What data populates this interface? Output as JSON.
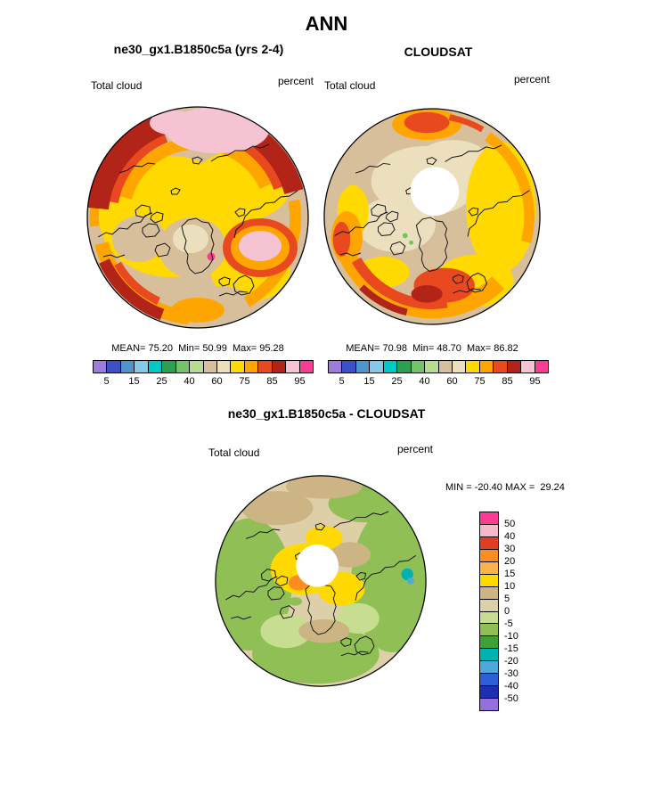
{
  "page": {
    "title": "ANN"
  },
  "panels": {
    "model": {
      "title": "ne30_gx1.B1850c5a (yrs 2-4)",
      "var_label": "Total cloud",
      "units": "percent",
      "stats": "MEAN= 75.20  Min= 50.99  Max= 95.28"
    },
    "obs": {
      "title": "CLOUDSAT",
      "var_label": "Total cloud",
      "units": "percent",
      "stats": "MEAN= 70.98  Min= 48.70  Max= 86.82"
    },
    "diff": {
      "title": "ne30_gx1.B1850c5a - CLOUDSAT",
      "var_label": "Total cloud",
      "units": "percent",
      "minmax": "MIN = -20.40 MAX =  29.24"
    }
  },
  "chart_data": [
    {
      "type": "heatmap",
      "subtype": "filled-contour polar map",
      "projection": "north polar stereographic",
      "season": "ANN",
      "title": "ne30_gx1.B1850c5a (yrs 2-4)",
      "variable": "Total cloud",
      "units": "percent",
      "stats": {
        "mean": 75.2,
        "min": 50.99,
        "max": 95.28
      },
      "contour_levels": [
        5,
        10,
        15,
        20,
        25,
        30,
        40,
        50,
        60,
        70,
        75,
        80,
        85,
        90,
        95
      ],
      "tick_labels": [
        "5",
        "15",
        "25",
        "40",
        "60",
        "75",
        "85",
        "95"
      ],
      "palette": [
        "#9e7bde",
        "#3c50c8",
        "#4f94cd",
        "#85c8ea",
        "#00c8c8",
        "#2e9e50",
        "#74c465",
        "#b8dc8c",
        "#d8bf9b",
        "#ecdfbd",
        "#ffd900",
        "#ffa500",
        "#e8491f",
        "#b22318",
        "#f6c3d3",
        "#fb3c94"
      ],
      "legend_position": "bottom",
      "pattern_notes": "Dark-red/red band (85-95%) around top rim with pale-pink >90% patches near top; broad yellow-orange (70-85%) over oceans; tan (50-70%) over Greenland and land; small pink/magenta maximum east of Greenland."
    },
    {
      "type": "heatmap",
      "subtype": "filled-contour polar map",
      "projection": "north polar stereographic",
      "season": "ANN",
      "title": "CLOUDSAT",
      "variable": "Total cloud",
      "units": "percent",
      "stats": {
        "mean": 70.98,
        "min": 48.7,
        "max": 86.82
      },
      "contour_levels": [
        5,
        10,
        15,
        20,
        25,
        30,
        40,
        50,
        60,
        70,
        75,
        80,
        85,
        90,
        95
      ],
      "tick_labels": [
        "5",
        "15",
        "25",
        "40",
        "60",
        "75",
        "85",
        "95"
      ],
      "palette": [
        "#9e7bde",
        "#3c50c8",
        "#4f94cd",
        "#85c8ea",
        "#00c8c8",
        "#2e9e50",
        "#74c465",
        "#b8dc8c",
        "#d8bf9b",
        "#ecdfbd",
        "#ffd900",
        "#ffa500",
        "#e8491f",
        "#b22318",
        "#f6c3d3",
        "#fb3c94"
      ],
      "legend_position": "bottom",
      "no_data_hole_at_pole": true,
      "pattern_notes": "White no-data circle at pole; tan/cream (50-70%) central Arctic; orange-red (75-90%) ring along lower and right rim; yellow band on the Pacific side."
    },
    {
      "type": "heatmap",
      "subtype": "filled-contour polar difference map",
      "projection": "north polar stereographic",
      "season": "ANN",
      "title": "ne30_gx1.B1850c5a - CLOUDSAT",
      "variable": "Total cloud",
      "units": "percent",
      "stats": {
        "min": -20.4,
        "max": 29.24
      },
      "contour_levels": [
        50,
        40,
        30,
        20,
        15,
        10,
        5,
        0,
        -5,
        -10,
        -15,
        -20,
        -30,
        -40,
        -50
      ],
      "palette": [
        "#fb3c94",
        "#f6b9cb",
        "#e23c22",
        "#fd8d1e",
        "#feb24c",
        "#ffd900",
        "#cdb485",
        "#ddd0a8",
        "#c7dd8f",
        "#8fbf55",
        "#3fa03a",
        "#00b2b2",
        "#4fa8dc",
        "#2c5fd8",
        "#1c2fb0",
        "#9370db"
      ],
      "legend_position": "right",
      "no_data_hole_at_pole": true,
      "pattern_notes": "Green negative differences (-5 to -15%) around the periphery; beige/tan 0-10% and yellow 10-15% positive differences over the central Arctic near the pole; small teal (-15 to -20%) spot on right side."
    }
  ]
}
